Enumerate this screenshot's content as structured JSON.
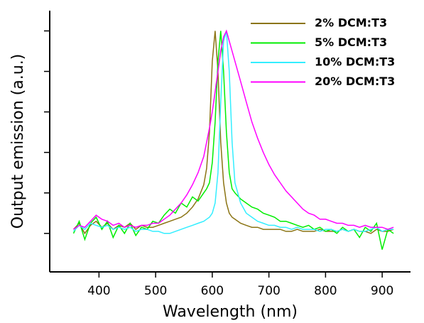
{
  "chart_data": {
    "type": "line",
    "xlabel": "Wavelength (nm)",
    "ylabel": "Output emission (a.u.)",
    "x": [
      355,
      365,
      375,
      385,
      395,
      405,
      415,
      425,
      435,
      445,
      455,
      465,
      475,
      485,
      495,
      505,
      515,
      525,
      535,
      545,
      555,
      565,
      575,
      585,
      590,
      595,
      600,
      605,
      610,
      615,
      620,
      625,
      630,
      635,
      640,
      650,
      660,
      670,
      680,
      690,
      700,
      710,
      720,
      730,
      740,
      750,
      760,
      770,
      780,
      790,
      800,
      810,
      820,
      830,
      840,
      850,
      860,
      870,
      880,
      890,
      900,
      910,
      920
    ],
    "series": [
      {
        "name": "2% DCM:T3",
        "color": "#8b7414",
        "values": [
          0.02,
          0.05,
          0.0,
          0.04,
          0.06,
          0.03,
          0.05,
          0.02,
          0.04,
          0.03,
          0.05,
          0.02,
          0.04,
          0.03,
          0.03,
          0.04,
          0.05,
          0.06,
          0.07,
          0.08,
          0.1,
          0.13,
          0.17,
          0.24,
          0.32,
          0.5,
          0.85,
          1.0,
          0.8,
          0.45,
          0.25,
          0.15,
          0.1,
          0.08,
          0.07,
          0.05,
          0.04,
          0.03,
          0.03,
          0.02,
          0.02,
          0.02,
          0.02,
          0.01,
          0.01,
          0.02,
          0.01,
          0.01,
          0.01,
          0.02,
          0.01,
          0.01,
          0.01,
          0.02,
          0.01,
          0.02,
          0.01,
          0.01,
          0.0,
          0.02,
          0.01,
          0.01,
          0.02
        ]
      },
      {
        "name": "5% DCM:T3",
        "color": "#00ee00",
        "values": [
          0.0,
          0.06,
          -0.03,
          0.05,
          0.08,
          0.02,
          0.06,
          -0.02,
          0.04,
          0.0,
          0.05,
          -0.01,
          0.03,
          0.02,
          0.06,
          0.05,
          0.09,
          0.12,
          0.1,
          0.15,
          0.13,
          0.18,
          0.16,
          0.2,
          0.22,
          0.25,
          0.35,
          0.55,
          0.85,
          1.0,
          0.8,
          0.5,
          0.3,
          0.22,
          0.2,
          0.17,
          0.15,
          0.13,
          0.12,
          0.1,
          0.09,
          0.08,
          0.06,
          0.06,
          0.05,
          0.04,
          0.03,
          0.04,
          0.02,
          0.03,
          0.01,
          0.02,
          0.0,
          0.03,
          0.01,
          0.02,
          -0.02,
          0.03,
          0.01,
          0.05,
          -0.08,
          0.02,
          0.0
        ]
      },
      {
        "name": "10% DCM:T3",
        "color": "#33eeff",
        "values": [
          0.01,
          0.04,
          0.02,
          0.05,
          0.04,
          0.03,
          0.04,
          0.02,
          0.03,
          0.02,
          0.03,
          0.01,
          0.02,
          0.02,
          0.01,
          0.01,
          0.0,
          0.0,
          0.01,
          0.02,
          0.03,
          0.04,
          0.05,
          0.06,
          0.07,
          0.08,
          0.1,
          0.15,
          0.3,
          0.65,
          0.95,
          1.0,
          0.8,
          0.45,
          0.25,
          0.15,
          0.1,
          0.08,
          0.06,
          0.05,
          0.04,
          0.04,
          0.03,
          0.03,
          0.02,
          0.03,
          0.02,
          0.02,
          0.02,
          0.01,
          0.02,
          0.02,
          0.01,
          0.02,
          0.01,
          0.02,
          0.01,
          0.01,
          0.02,
          0.03,
          0.01,
          0.02,
          0.02
        ]
      },
      {
        "name": "20% DCM:T3",
        "color": "#ff00ff",
        "values": [
          0.02,
          0.04,
          0.03,
          0.06,
          0.09,
          0.07,
          0.06,
          0.04,
          0.05,
          0.03,
          0.04,
          0.03,
          0.04,
          0.04,
          0.05,
          0.05,
          0.07,
          0.09,
          0.12,
          0.15,
          0.19,
          0.24,
          0.3,
          0.38,
          0.45,
          0.52,
          0.6,
          0.7,
          0.8,
          0.9,
          0.97,
          1.0,
          0.95,
          0.9,
          0.85,
          0.75,
          0.65,
          0.55,
          0.47,
          0.4,
          0.34,
          0.29,
          0.25,
          0.21,
          0.18,
          0.15,
          0.12,
          0.1,
          0.09,
          0.07,
          0.07,
          0.06,
          0.05,
          0.05,
          0.04,
          0.04,
          0.03,
          0.04,
          0.03,
          0.03,
          0.03,
          0.02,
          0.03
        ]
      }
    ],
    "xlim": [
      313,
      950
    ],
    "xticks": [
      400,
      500,
      600,
      700,
      800,
      900
    ],
    "ylim": [
      -0.19,
      1.1
    ],
    "yticks": [
      0,
      0.2,
      0.4,
      0.6,
      0.8,
      1.0
    ],
    "legend": "upper right"
  }
}
